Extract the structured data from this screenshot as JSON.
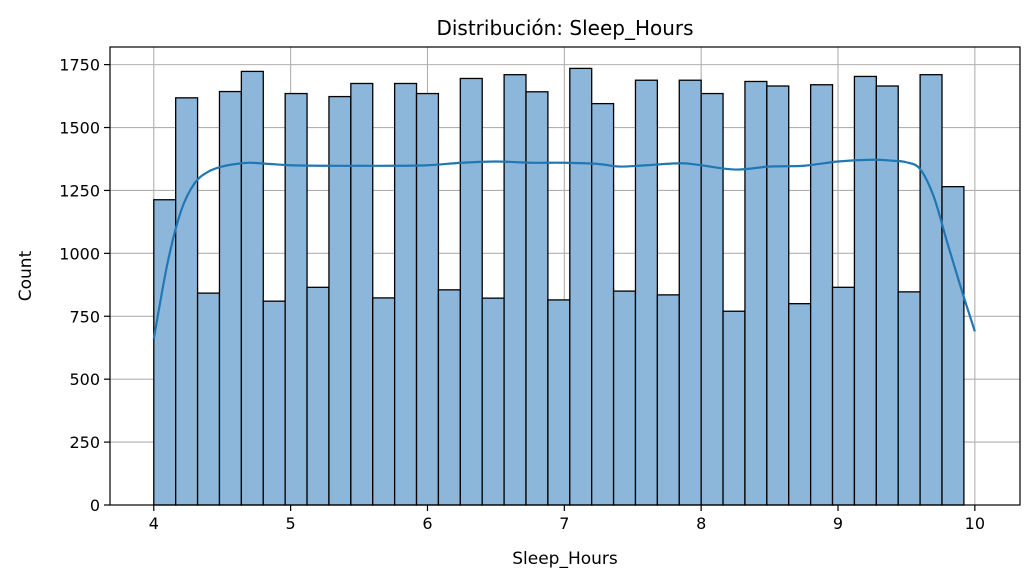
{
  "chart_data": {
    "type": "bar",
    "title": "Distribución: Sleep_Hours",
    "xlabel": "Sleep_Hours",
    "ylabel": "Count",
    "xlim": [
      3.68,
      10.33
    ],
    "ylim": [
      0,
      1820
    ],
    "xticks": [
      4,
      5,
      6,
      7,
      8,
      9,
      10
    ],
    "yticks": [
      0,
      250,
      500,
      750,
      1000,
      1250,
      1500,
      1750
    ],
    "grid": true,
    "bin_start": 4.0,
    "bin_width": 0.16,
    "values": [
      1213,
      1618,
      842,
      1643,
      1723,
      810,
      1635,
      865,
      1623,
      1675,
      823,
      1675,
      1635,
      855,
      1695,
      822,
      1710,
      1642,
      815,
      1735,
      1595,
      850,
      1688,
      835,
      1688,
      1635,
      770,
      1683,
      1665,
      800,
      1670,
      865,
      1703,
      1665,
      847,
      1710,
      1265
    ],
    "kde": {
      "x": [
        4.0,
        4.1,
        4.2,
        4.3,
        4.4,
        4.5,
        4.6,
        4.7,
        4.85,
        5.0,
        5.25,
        5.5,
        5.75,
        6.0,
        6.25,
        6.5,
        6.75,
        7.0,
        7.25,
        7.4,
        7.6,
        7.85,
        8.0,
        8.25,
        8.5,
        8.75,
        9.0,
        9.25,
        9.4,
        9.5,
        9.6,
        9.7,
        9.8,
        9.9,
        10.0
      ],
      "y": [
        660,
        960,
        1170,
        1280,
        1325,
        1345,
        1355,
        1360,
        1355,
        1350,
        1348,
        1348,
        1348,
        1350,
        1360,
        1365,
        1360,
        1360,
        1355,
        1345,
        1350,
        1358,
        1350,
        1333,
        1345,
        1348,
        1365,
        1372,
        1368,
        1362,
        1335,
        1225,
        1040,
        860,
        690
      ]
    },
    "bar_color": "#8db7da",
    "kde_color": "#1f77b4"
  }
}
